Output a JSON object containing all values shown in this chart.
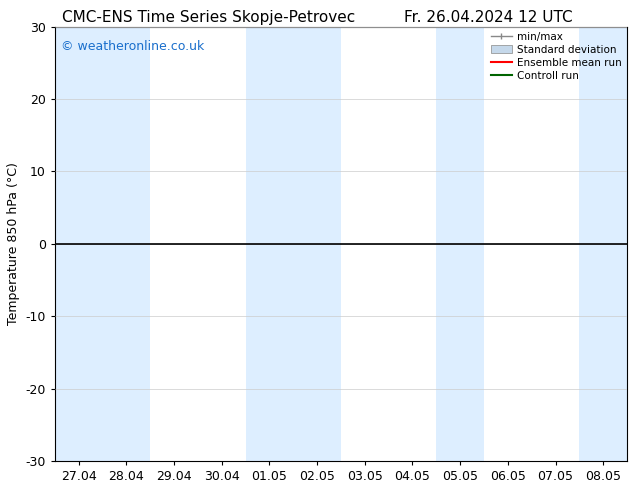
{
  "title_left": "CMC-ENS Time Series Skopje-Petrovec",
  "title_right": "Fr. 26.04.2024 12 UTC",
  "ylabel": "Temperature 850 hPa (°C)",
  "watermark": "© weatheronline.co.uk",
  "watermark_color": "#1a6fcc",
  "ylim": [
    -30,
    30
  ],
  "yticks": [
    -30,
    -20,
    -10,
    0,
    10,
    20,
    30
  ],
  "x_labels": [
    "27.04",
    "28.04",
    "29.04",
    "30.04",
    "01.05",
    "02.05",
    "03.05",
    "04.05",
    "05.05",
    "06.05",
    "07.05",
    "08.05"
  ],
  "n_points": 12,
  "shaded_cols": [
    0,
    1,
    4,
    5,
    8,
    11
  ],
  "shade_color": "#ddeeff",
  "line_value": 0.0,
  "line_color": "#000000",
  "ensemble_color": "#ff0000",
  "control_color": "#006400",
  "minmax_color": "#888888",
  "stddev_color": "#c5d8ea",
  "bg_color": "#ffffff",
  "legend_labels": [
    "min/max",
    "Standard deviation",
    "Ensemble mean run",
    "Controll run"
  ],
  "legend_line_colors": [
    "#888888",
    "#c5d8ea",
    "#ff0000",
    "#006400"
  ],
  "title_fontsize": 11,
  "axis_fontsize": 9,
  "watermark_fontsize": 9,
  "ylabel_fontsize": 9
}
